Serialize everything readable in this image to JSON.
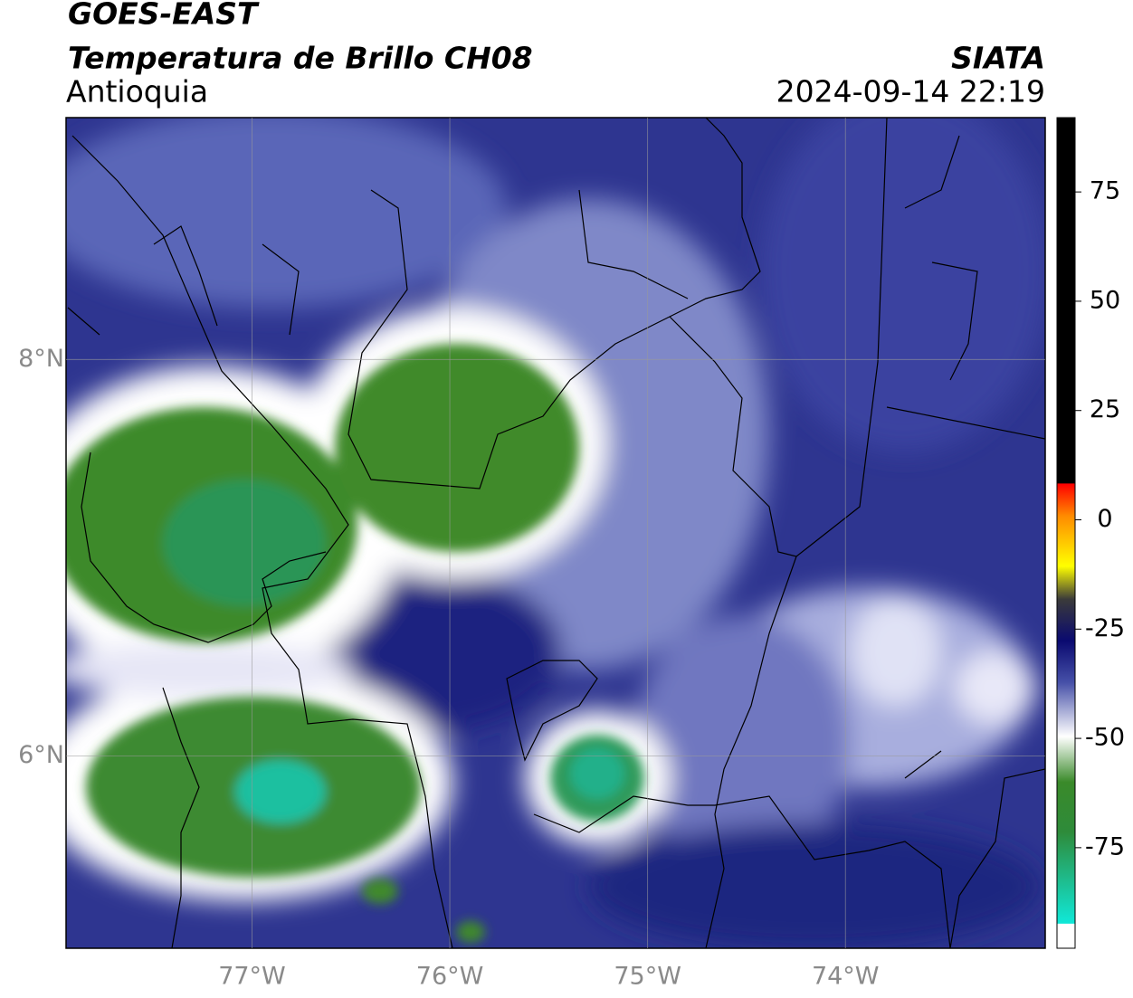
{
  "header": {
    "title": "GOES-EAST",
    "subtitle": "Temperatura de Brillo CH08",
    "region": "Antioquia",
    "source": "SIATA",
    "datetime": "2024-09-14 22:19"
  },
  "map": {
    "xlim": [
      -77.94,
      -72.99
    ],
    "ylim": [
      5.03,
      9.22
    ],
    "xticks": [
      {
        "value": -77,
        "label": "77°W"
      },
      {
        "value": -76,
        "label": "76°W"
      },
      {
        "value": -75,
        "label": "75°W"
      },
      {
        "value": -74,
        "label": "74°W"
      }
    ],
    "yticks": [
      {
        "value": 8,
        "label": "8°N"
      },
      {
        "value": 6,
        "label": "6°N"
      }
    ],
    "grid": true
  },
  "colorbar": {
    "lim": [
      -98,
      92
    ],
    "ticks": [
      75,
      50,
      25,
      0,
      -25,
      -50,
      -75
    ]
  }
}
